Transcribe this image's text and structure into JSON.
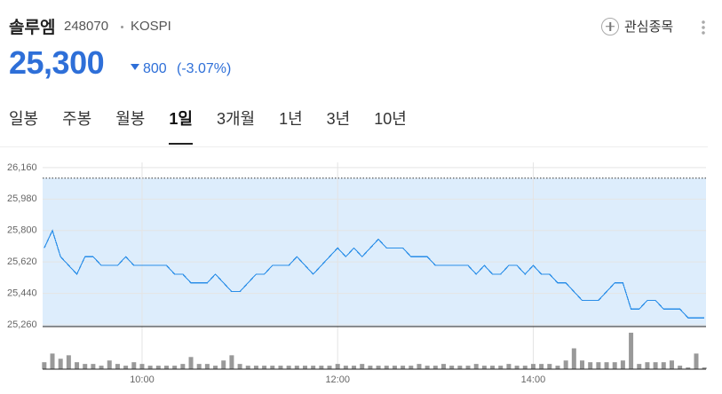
{
  "header": {
    "name": "솔루엠",
    "code": "248070",
    "market": "KOSPI",
    "price": "25,300",
    "change": "800",
    "change_pct": "(-3.07%)",
    "watch_button": "관심종목",
    "tabs": [
      "일봉",
      "주봉",
      "월봉",
      "1일",
      "3개월",
      "1년",
      "3년",
      "10년"
    ],
    "active_tab": 3
  },
  "chart_data": {
    "type": "line",
    "color": "#2a8ee8",
    "fill_color": "#ddedfc",
    "x": [
      540,
      545,
      550,
      555,
      560,
      565,
      570,
      575,
      580,
      585,
      590,
      595,
      600,
      605,
      610,
      615,
      620,
      625,
      630,
      635,
      640,
      645,
      650,
      655,
      660,
      665,
      670,
      675,
      680,
      685,
      690,
      695,
      700,
      705,
      710,
      715,
      720,
      725,
      730,
      735,
      740,
      745,
      750,
      755,
      760,
      765,
      770,
      775,
      780,
      785,
      790,
      795,
      800,
      805,
      810,
      815,
      820,
      825,
      830,
      835,
      840,
      845,
      850,
      855,
      860,
      865,
      870,
      875,
      880,
      885,
      890,
      895,
      900,
      905,
      910,
      915,
      920,
      925,
      930,
      935,
      940,
      945
    ],
    "series": [
      {
        "values": [
          25700,
          25800,
          25650,
          25600,
          25550,
          25650,
          25650,
          25600,
          25600,
          25600,
          25650,
          25600,
          25600,
          25600,
          25600,
          25600,
          25550,
          25550,
          25500,
          25500,
          25500,
          25550,
          25500,
          25450,
          25450,
          25500,
          25550,
          25550,
          25600,
          25600,
          25600,
          25650,
          25600,
          25550,
          25600,
          25650,
          25700,
          25650,
          25700,
          25650,
          25700,
          25750,
          25700,
          25700,
          25700,
          25650,
          25650,
          25650,
          25600,
          25600,
          25600,
          25600,
          25600,
          25550,
          25600,
          25550,
          25550,
          25600,
          25600,
          25550,
          25600,
          25550,
          25550,
          25500,
          25500,
          25450,
          25400,
          25400,
          25400,
          25450,
          25500,
          25500,
          25350,
          25350,
          25400,
          25400,
          25350,
          25350,
          25350,
          25300,
          25300,
          25300
        ]
      }
    ],
    "volume": {
      "color": "#999999",
      "values": [
        8,
        18,
        12,
        16,
        8,
        6,
        6,
        4,
        10,
        6,
        4,
        8,
        6,
        4,
        4,
        4,
        4,
        6,
        14,
        6,
        6,
        4,
        10,
        16,
        6,
        4,
        4,
        4,
        4,
        4,
        4,
        4,
        4,
        4,
        4,
        4,
        6,
        4,
        4,
        6,
        4,
        4,
        4,
        4,
        4,
        4,
        6,
        4,
        4,
        6,
        4,
        4,
        4,
        6,
        4,
        4,
        4,
        6,
        4,
        4,
        6,
        6,
        6,
        4,
        10,
        24,
        10,
        8,
        8,
        8,
        8,
        10,
        42,
        6,
        8,
        8,
        8,
        10,
        4,
        2,
        18,
        2
      ],
      "ylim": [
        0,
        45
      ]
    },
    "previous_close": 26100,
    "xlim": [
      539,
      946
    ],
    "xticks": [
      {
        "value": 600,
        "label": "10:00"
      },
      {
        "value": 720,
        "label": "12:00"
      },
      {
        "value": 840,
        "label": "14:00"
      }
    ],
    "ylim": [
      25250,
      26190
    ],
    "yticks": [
      {
        "value": 26160,
        "label": "26,160"
      },
      {
        "value": 25980,
        "label": "25,980"
      },
      {
        "value": 25800,
        "label": "25,800"
      },
      {
        "value": 25620,
        "label": "25,620"
      },
      {
        "value": 25440,
        "label": "25,440"
      },
      {
        "value": 25260,
        "label": "25,260"
      }
    ],
    "grid": true
  }
}
